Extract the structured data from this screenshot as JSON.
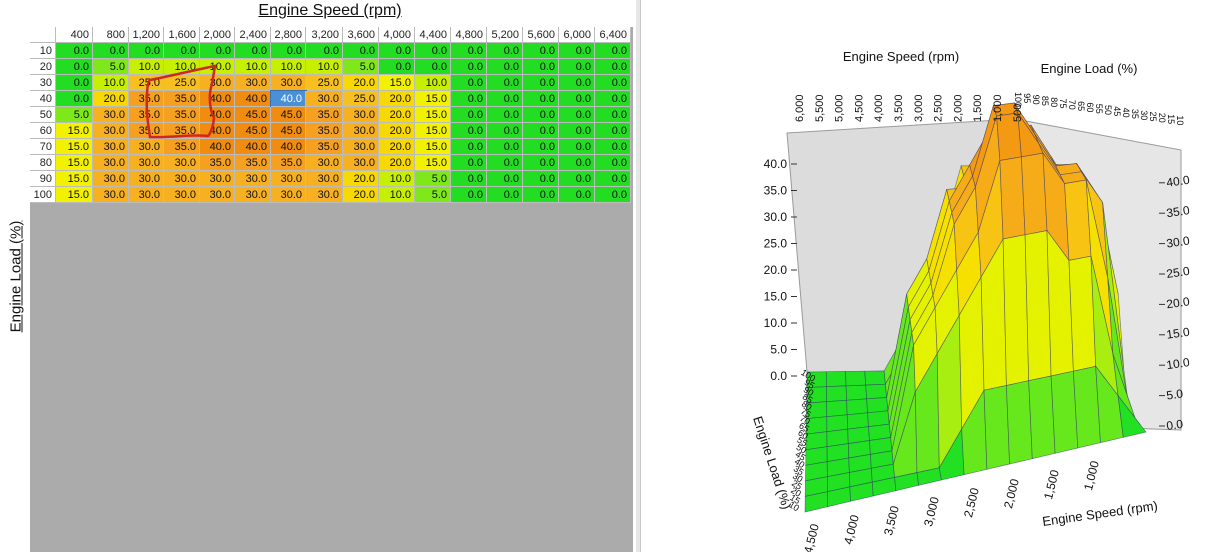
{
  "table": {
    "x_axis_title": "Engine Speed (rpm)",
    "y_axis_title": "Engine Load (%)",
    "columns": [
      "400",
      "800",
      "1,200",
      "1,600",
      "2,000",
      "2,400",
      "2,800",
      "3,200",
      "3,600",
      "4,000",
      "4,400",
      "4,800",
      "5,200",
      "5,600",
      "6,000",
      "6,400"
    ],
    "rows": [
      {
        "load": "10",
        "values": [
          "0.0",
          "0.0",
          "0.0",
          "0.0",
          "0.0",
          "0.0",
          "0.0",
          "0.0",
          "0.0",
          "0.0",
          "0.0",
          "0.0",
          "0.0",
          "0.0",
          "0.0",
          "0.0"
        ]
      },
      {
        "load": "20",
        "values": [
          "0.0",
          "5.0",
          "10.0",
          "10.0",
          "10.0",
          "10.0",
          "10.0",
          "10.0",
          "5.0",
          "0.0",
          "0.0",
          "0.0",
          "0.0",
          "0.0",
          "0.0",
          "0.0"
        ]
      },
      {
        "load": "30",
        "values": [
          "0.0",
          "10.0",
          "25.0",
          "25.0",
          "30.0",
          "30.0",
          "30.0",
          "25.0",
          "20.0",
          "15.0",
          "10.0",
          "0.0",
          "0.0",
          "0.0",
          "0.0",
          "0.0"
        ]
      },
      {
        "load": "40",
        "values": [
          "0.0",
          "20.0",
          "35.0",
          "35.0",
          "40.0",
          "40.0",
          "40.0",
          "30.0",
          "25.0",
          "20.0",
          "15.0",
          "0.0",
          "0.0",
          "0.0",
          "0.0",
          "0.0"
        ]
      },
      {
        "load": "50",
        "values": [
          "5.0",
          "30.0",
          "35.0",
          "35.0",
          "40.0",
          "45.0",
          "45.0",
          "35.0",
          "30.0",
          "20.0",
          "15.0",
          "0.0",
          "0.0",
          "0.0",
          "0.0",
          "0.0"
        ]
      },
      {
        "load": "60",
        "values": [
          "15.0",
          "30.0",
          "35.0",
          "35.0",
          "40.0",
          "45.0",
          "45.0",
          "35.0",
          "30.0",
          "20.0",
          "15.0",
          "0.0",
          "0.0",
          "0.0",
          "0.0",
          "0.0"
        ]
      },
      {
        "load": "70",
        "values": [
          "15.0",
          "30.0",
          "30.0",
          "35.0",
          "40.0",
          "40.0",
          "40.0",
          "35.0",
          "30.0",
          "20.0",
          "15.0",
          "0.0",
          "0.0",
          "0.0",
          "0.0",
          "0.0"
        ]
      },
      {
        "load": "80",
        "values": [
          "15.0",
          "30.0",
          "30.0",
          "30.0",
          "35.0",
          "35.0",
          "35.0",
          "30.0",
          "30.0",
          "20.0",
          "15.0",
          "0.0",
          "0.0",
          "0.0",
          "0.0",
          "0.0"
        ]
      },
      {
        "load": "90",
        "values": [
          "15.0",
          "30.0",
          "30.0",
          "30.0",
          "30.0",
          "30.0",
          "30.0",
          "30.0",
          "20.0",
          "10.0",
          "5.0",
          "0.0",
          "0.0",
          "0.0",
          "0.0",
          "0.0"
        ]
      },
      {
        "load": "100",
        "values": [
          "15.0",
          "30.0",
          "30.0",
          "30.0",
          "30.0",
          "30.0",
          "30.0",
          "30.0",
          "20.0",
          "10.0",
          "5.0",
          "0.0",
          "0.0",
          "0.0",
          "0.0",
          "0.0"
        ]
      }
    ],
    "selected_cell": {
      "row": 3,
      "col": 6
    },
    "colors": {
      "low": "#22dd22",
      "mid": "#f2f200",
      "high": "#f5a020",
      "max": "#f08c10",
      "selected": "#4a90d9",
      "grid": "#bcbcbc",
      "empty": "#ababab"
    }
  },
  "chart_data": {
    "type": "surface3d",
    "title": "Engine Speed (rpm)",
    "x_label": "Engine Speed (rpm)",
    "y_label": "Engine Load (%)",
    "x_ticks": [
      "500",
      "1,000",
      "1,500",
      "2,000",
      "2,500",
      "3,000",
      "3,500",
      "4,000",
      "4,500",
      "5,000",
      "5,500",
      "6,000"
    ],
    "y_ticks": [
      "10",
      "15",
      "20",
      "25",
      "30",
      "35",
      "40",
      "45",
      "50",
      "55",
      "60",
      "65",
      "70",
      "75",
      "80",
      "85",
      "90",
      "95",
      "100"
    ],
    "z_ticks": [
      "0.0",
      "5.0",
      "10.0",
      "15.0",
      "20.0",
      "25.0",
      "30.0",
      "35.0",
      "40.0"
    ],
    "z_ticks_left": [
      "0.0",
      "5.0",
      "10.0",
      "15.0",
      "20.0",
      "25.0",
      "30.0",
      "35.0",
      "40.0"
    ],
    "bottom_x_ticks": [
      "1,000",
      "1,500",
      "2,000",
      "2,500",
      "3,000",
      "3,500",
      "4,000",
      "4,500"
    ],
    "zlim": [
      0,
      45
    ]
  }
}
